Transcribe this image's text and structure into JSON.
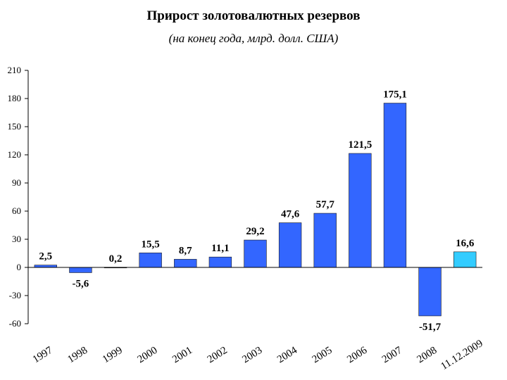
{
  "chart_data": {
    "type": "bar",
    "title": "Прирост золотовалютных резервов",
    "subtitle": "(на конец года, млрд. долл. США)",
    "xlabel": "",
    "ylabel": "",
    "ylim": [
      -60,
      210
    ],
    "yticks": [
      "210",
      "180",
      "150",
      "120",
      "90",
      "60",
      "30",
      "0",
      "-30",
      "-60"
    ],
    "yticks_values": [
      210,
      180,
      150,
      120,
      90,
      60,
      30,
      0,
      -30,
      -60
    ],
    "grid": false,
    "categories": [
      "1997",
      "1998",
      "1999",
      "2000",
      "2001",
      "2002",
      "2003",
      "2004",
      "2005",
      "2006",
      "2007",
      "2008",
      "11.12.2009"
    ],
    "values": [
      2.5,
      -5.6,
      0.2,
      15.5,
      8.7,
      11.1,
      29.2,
      47.6,
      57.7,
      121.5,
      175.1,
      -51.7,
      16.6
    ],
    "data_labels": [
      "2,5",
      "-5,6",
      "0,2",
      "15,5",
      "8,7",
      "11,1",
      "29,2",
      "47,6",
      "57,7",
      "121,5",
      "175,1",
      "-51,7",
      "16,6"
    ],
    "colors": {
      "bar": "#3366ff",
      "highlight": "#33ccff",
      "bar_stroke": "#1a1a1a",
      "axis": "#000000"
    },
    "highlight_index": 12
  }
}
